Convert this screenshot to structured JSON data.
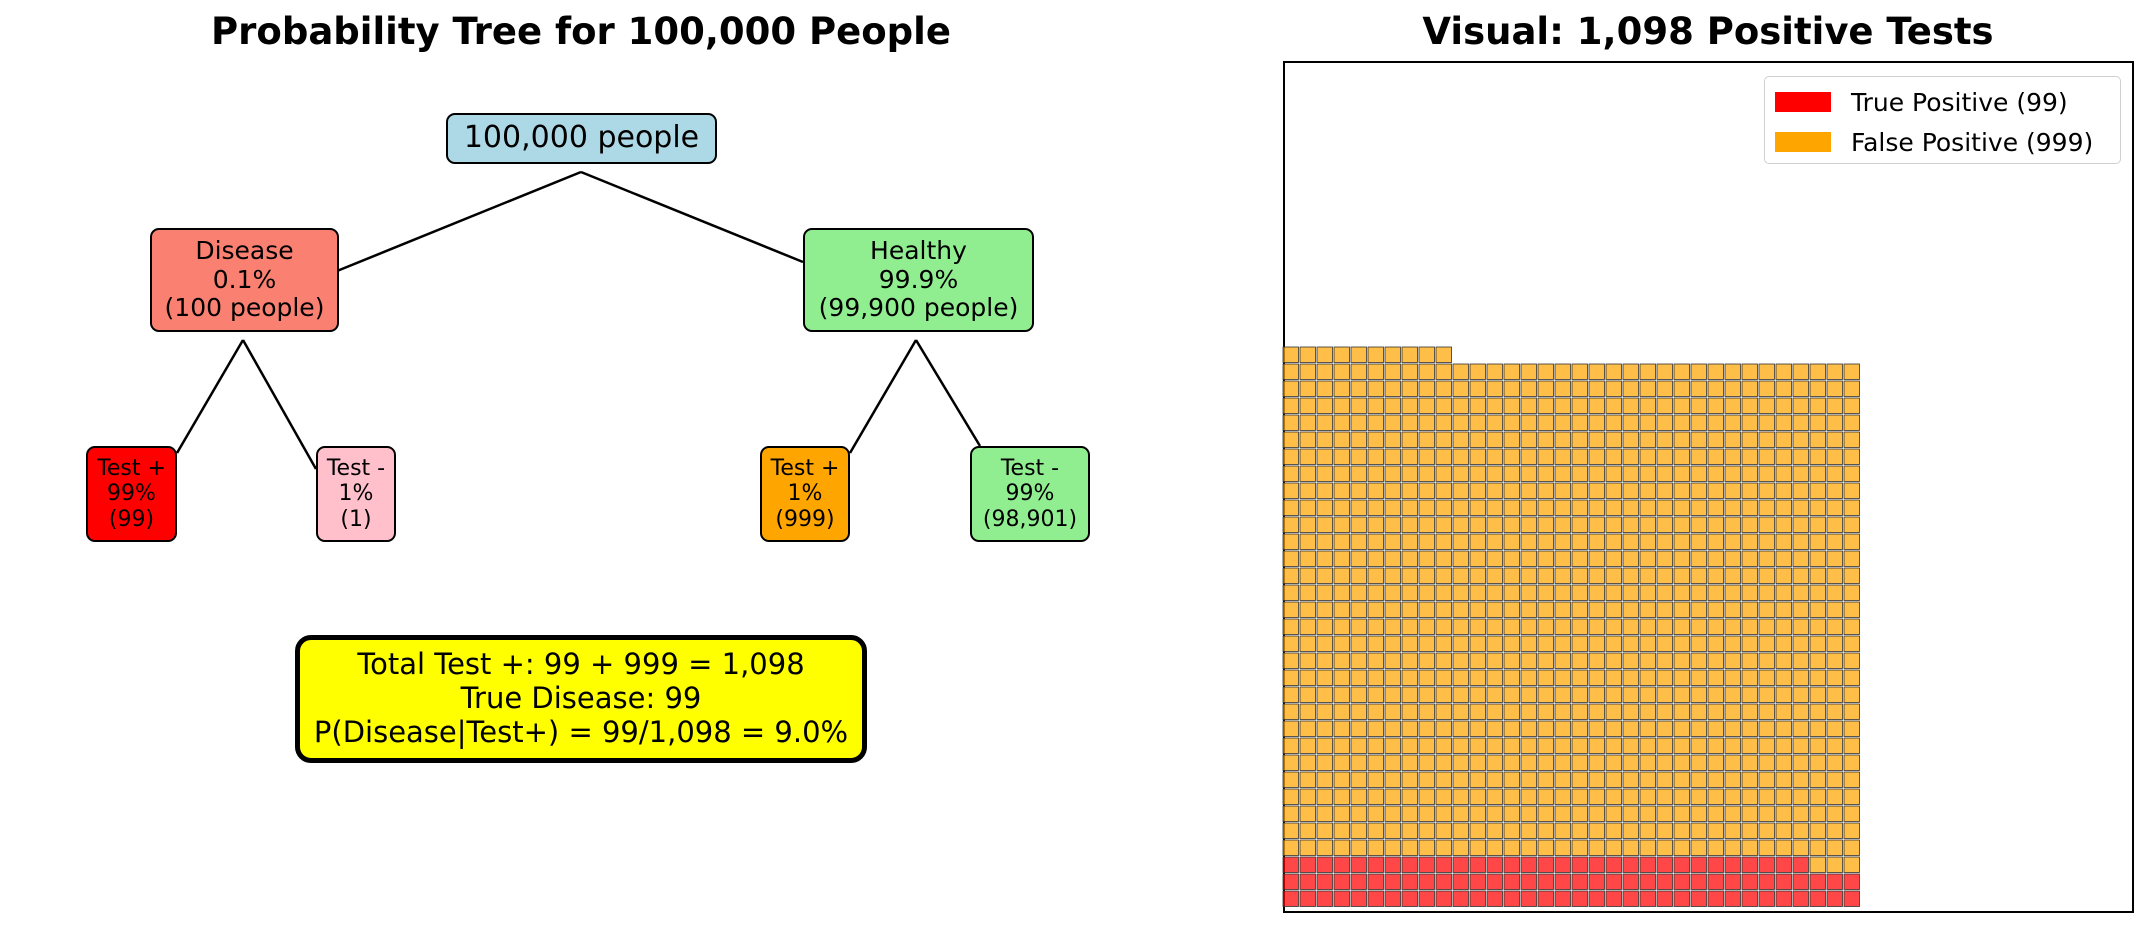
{
  "tree": {
    "title": "Probability Tree for 100,000 People",
    "root": {
      "label": "100,000 people",
      "color": "#add8e6"
    },
    "level1": [
      {
        "lines": [
          "Disease",
          "0.1%",
          "(100 people)"
        ],
        "color": "#fa8072"
      },
      {
        "lines": [
          "Healthy",
          "99.9%",
          "(99,900 people)"
        ],
        "color": "#90ee90"
      }
    ],
    "level2": [
      {
        "lines": [
          "Test +",
          "99%",
          "(99)"
        ],
        "color": "#ff0000"
      },
      {
        "lines": [
          "Test -",
          "1%",
          "(1)"
        ],
        "color": "#ffc0cb"
      },
      {
        "lines": [
          "Test +",
          "1%",
          "(999)"
        ],
        "color": "#ffa500"
      },
      {
        "lines": [
          "Test -",
          "99%",
          "(98,901)"
        ],
        "color": "#90ee90"
      }
    ],
    "summary": {
      "lines": [
        "Total Test +: 99 + 999 = 1,098",
        "True Disease: 99",
        "P(Disease|Test+) = 99/1,098 = 9.0%"
      ],
      "color": "#ffff00"
    }
  },
  "chart_data": {
    "type": "waffle",
    "title": "Visual: 1,098 Positive Tests",
    "columns": 34,
    "series": [
      {
        "name": "True Positive (99)",
        "value": 99,
        "color": "#ff0000"
      },
      {
        "name": "False Positive (999)",
        "value": 999,
        "color": "#ffa500"
      }
    ],
    "legend_position": "top-right",
    "axes_visible": false
  }
}
